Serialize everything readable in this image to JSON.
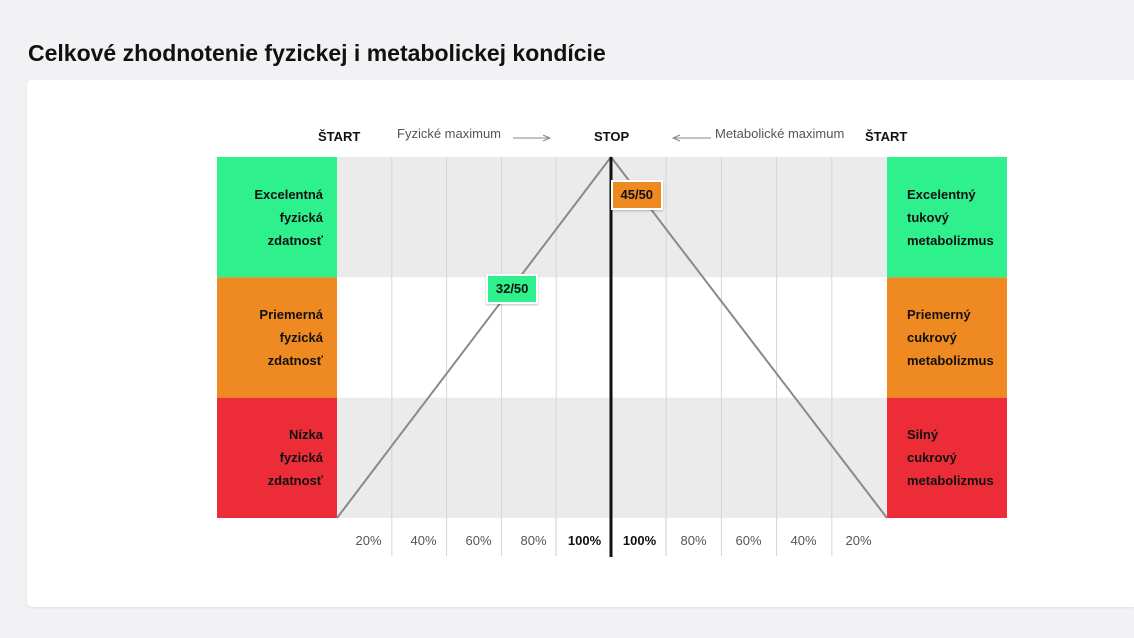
{
  "page_title": "Celkové zhodnotenie fyzickej i metabolickej kondície",
  "chart_data": {
    "type": "line",
    "header": {
      "start_left": "ŠTART",
      "physical_max": "Fyzické maximum",
      "stop": "STOP",
      "metabolic_max": "Metabolické maximum",
      "start_right": "ŠTART"
    },
    "left_zones": [
      {
        "label": "Excelentná\nfyzická\nzdatnosť",
        "color": "#2ef08d"
      },
      {
        "label": "Priemerná\nfyzická\nzdatnosť",
        "color": "#ee8a21"
      },
      {
        "label": "Nízka\nfyzická\nzdatnosť",
        "color": "#ec2d37"
      }
    ],
    "right_zones": [
      {
        "label": "Excelentný\ntukový\nmetabolizmus",
        "color": "#2ef08d"
      },
      {
        "label": "Priemerný\ncukrový\nmetabolizmus",
        "color": "#ee8a21"
      },
      {
        "label": "Silný\ncukrový\nmetabolizmus",
        "color": "#ec2d37"
      }
    ],
    "x_ticks_left": [
      "20%",
      "40%",
      "60%",
      "80%",
      "100%"
    ],
    "x_ticks_right": [
      "100%",
      "80%",
      "60%",
      "40%",
      "20%"
    ],
    "max_score": 50,
    "physical": {
      "score": 32,
      "label": "32/50",
      "color": "#2ef08d"
    },
    "metabolic": {
      "score": 45,
      "label": "45/50",
      "color": "#ee8a21"
    },
    "grid": true,
    "band_colors": [
      "#ebebeb",
      "#ffffff",
      "#ebebeb"
    ]
  }
}
